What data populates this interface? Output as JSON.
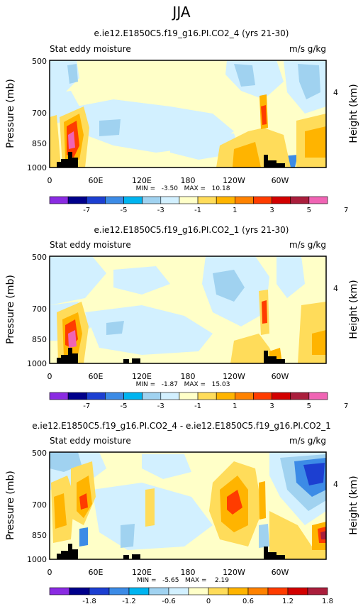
{
  "page_title": "JJA",
  "chart_data": [
    {
      "type": "heatmap",
      "title": "e.ie12.E1850C5.f19_g16.PI.CO2_4 (yrs 21-30)",
      "subtitle_left": "Stat eddy moisture",
      "subtitle_right": "m/s g/kg",
      "ylabel": "Pressure (mb)",
      "y2label": "Height (km)",
      "x_ticks": [
        "0",
        "60E",
        "120E",
        "180",
        "120W",
        "60W"
      ],
      "y_ticks": [
        "500",
        "700",
        "850",
        "1000"
      ],
      "y2_ticks": [
        "4"
      ],
      "stats": "MIN =   -3.50   MAX =   10.18",
      "colorbar_labels": [
        "-7",
        "-5",
        "-3",
        "-1",
        "1",
        "3",
        "5",
        "7"
      ],
      "colorbar_colors": [
        "#8a2be2",
        "#00008b",
        "#1c3fd1",
        "#3c8be6",
        "#00b4f0",
        "#a0d2f0",
        "#d2f0ff",
        "#ffffc8",
        "#ffdc5a",
        "#ffb400",
        "#ff8200",
        "#ff3c00",
        "#d20000",
        "#aa1e3c",
        "#f064b4"
      ]
    },
    {
      "type": "heatmap",
      "title": "e.ie12.E1850C5.f19_g16.PI.CO2_1 (yrs 21-30)",
      "subtitle_left": "Stat eddy moisture",
      "subtitle_right": "m/s g/kg",
      "ylabel": "Pressure (mb)",
      "y2label": "Height (km)",
      "x_ticks": [
        "0",
        "60E",
        "120E",
        "180",
        "120W",
        "60W"
      ],
      "y_ticks": [
        "500",
        "700",
        "850",
        "1000"
      ],
      "y2_ticks": [
        "4"
      ],
      "stats": "MIN =   -1.87   MAX =   15.03",
      "colorbar_labels": [
        "-7",
        "-5",
        "-3",
        "-1",
        "1",
        "3",
        "5",
        "7"
      ],
      "colorbar_colors": [
        "#8a2be2",
        "#00008b",
        "#1c3fd1",
        "#3c8be6",
        "#00b4f0",
        "#a0d2f0",
        "#d2f0ff",
        "#ffffc8",
        "#ffdc5a",
        "#ffb400",
        "#ff8200",
        "#ff3c00",
        "#d20000",
        "#aa1e3c",
        "#f064b4"
      ]
    },
    {
      "type": "heatmap",
      "title": "e.ie12.E1850C5.f19_g16.PI.CO2_4 - e.ie12.E1850C5.f19_g16.PI.CO2_1",
      "subtitle_left": "Stat eddy moisture",
      "subtitle_right": "m/s g/kg",
      "ylabel": "Pressure (mb)",
      "y2label": "Height (km)",
      "x_ticks": [
        "0",
        "60E",
        "120E",
        "180",
        "120W",
        "60W"
      ],
      "y_ticks": [
        "500",
        "700",
        "850",
        "1000"
      ],
      "y2_ticks": [
        "4"
      ],
      "stats": "MIN =   -5.65   MAX =    2.19",
      "colorbar_labels": [
        "-1.8",
        "-1.2",
        "-0.6",
        "0",
        "0.6",
        "1.2",
        "1.8"
      ],
      "colorbar_colors": [
        "#8a2be2",
        "#00008b",
        "#1c3fd1",
        "#3c8be6",
        "#00b4f0",
        "#a0d2f0",
        "#d2f0ff",
        "#ffffc8",
        "#ffdc5a",
        "#ffb400",
        "#ff8200",
        "#ff3c00",
        "#d20000",
        "#aa1e3c"
      ]
    }
  ]
}
